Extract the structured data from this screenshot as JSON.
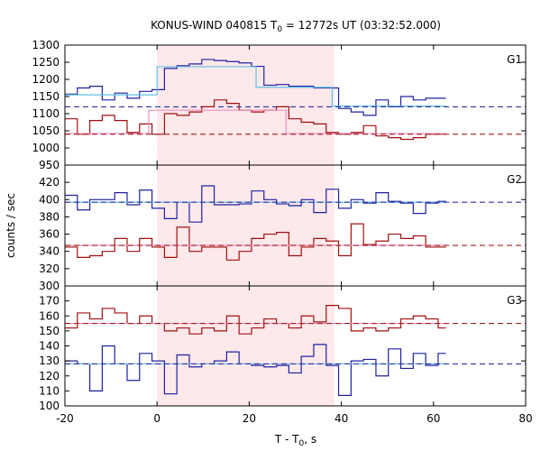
{
  "chart_data": {
    "type": "line",
    "title": "KONUS-WIND 040815 T",
    "title_sub": "0",
    "title_rest": " = 12772s UT (03:32:52.000)",
    "xlabel": "T - T",
    "xlabel_sub": "0",
    "xlabel_rest": ", s",
    "ylabel": "counts / sec",
    "xlim": [
      -20,
      80
    ],
    "x_ticks": [
      -20,
      0,
      20,
      40,
      60,
      80
    ],
    "shaded_region": [
      0,
      38.5
    ],
    "colors": {
      "blue_step": "#2020a0",
      "red_step": "#a01010",
      "blue_fit": "#60c0e8",
      "red_fit": "#f090c0",
      "blue_bg": "#3030a0",
      "red_bg": "#a02020",
      "shade": "#fde8ea"
    },
    "panels": [
      {
        "name": "G1",
        "ylim": [
          950,
          1300
        ],
        "y_ticks": [
          950,
          1000,
          1050,
          1100,
          1150,
          1200,
          1250,
          1300
        ],
        "series": [
          {
            "color": "blue",
            "edges": [
              -20,
              -17.3,
              -14.6,
              -11.9,
              -9.2,
              -6.5,
              -3.8,
              -1.1,
              1.6,
              4.3,
              7,
              9.7,
              12.4,
              15.1,
              17.8,
              20.5,
              23.2,
              25.9,
              28.6,
              31.3,
              34,
              36.7,
              39.4,
              42.1,
              44.8,
              47.5,
              50.2,
              52.9,
              55.6,
              58.3,
              61,
              62.7
            ],
            "values": [
              1157,
              1175,
              1180,
              1140,
              1160,
              1145,
              1165,
              1170,
              1232,
              1240,
              1245,
              1258,
              1255,
              1252,
              1248,
              1238,
              1183,
              1185,
              1180,
              1180,
              1175,
              1175,
              1115,
              1105,
              1095,
              1140,
              1120,
              1150,
              1140,
              1145,
              1145
            ],
            "fit": [
              [
                -20,
                1155
              ],
              [
                0,
                1155
              ],
              [
                0,
                1237
              ],
              [
                21.5,
                1237
              ],
              [
                21.5,
                1177
              ],
              [
                38,
                1177
              ],
              [
                38,
                1122
              ],
              [
                62.7,
                1122
              ]
            ],
            "background": 1120
          },
          {
            "color": "red",
            "edges": [
              -20,
              -17.3,
              -14.6,
              -11.9,
              -9.2,
              -6.5,
              -3.8,
              -1.1,
              1.6,
              4.3,
              7,
              9.7,
              12.4,
              15.1,
              17.8,
              20.5,
              23.2,
              25.9,
              28.6,
              31.3,
              34,
              36.7,
              39.4,
              42.1,
              44.8,
              47.5,
              50.2,
              52.9,
              55.6,
              58.3,
              61,
              62.7
            ],
            "values": [
              1085,
              1040,
              1080,
              1095,
              1080,
              1045,
              1070,
              1040,
              1100,
              1095,
              1105,
              1120,
              1140,
              1130,
              1110,
              1105,
              1110,
              1120,
              1085,
              1075,
              1070,
              1045,
              1040,
              1045,
              1065,
              1035,
              1030,
              1025,
              1030,
              1040,
              1040
            ],
            "fit": [
              [
                -20,
                1042
              ],
              [
                -1.8,
                1042
              ],
              [
                -1.8,
                1110
              ],
              [
                28,
                1110
              ],
              [
                28,
                1042
              ],
              [
                62.7,
                1042
              ]
            ],
            "background": 1040
          }
        ]
      },
      {
        "name": "G2",
        "ylim": [
          300,
          440
        ],
        "y_ticks": [
          300,
          320,
          340,
          360,
          380,
          400,
          420
        ],
        "series": [
          {
            "color": "blue",
            "edges": [
              -20,
              -17.3,
              -14.6,
              -11.9,
              -9.2,
              -6.5,
              -3.8,
              -1.1,
              1.6,
              4.3,
              7,
              9.7,
              12.4,
              15.1,
              17.8,
              20.5,
              23.2,
              25.9,
              28.6,
              31.3,
              34,
              36.7,
              39.4,
              42.1,
              44.8,
              47.5,
              50.2,
              52.9,
              55.6,
              58.3,
              61,
              62.7
            ],
            "values": [
              405,
              388,
              400,
              400,
              408,
              394,
              411,
              390,
              378,
              397,
              374,
              416,
              394,
              394,
              395,
              410,
              400,
              395,
              393,
              400,
              385,
              412,
              390,
              400,
              396,
              408,
              398,
              396,
              384,
              396,
              398
            ],
            "fit": [
              [
                -20,
                397
              ],
              [
                62.7,
                397
              ]
            ],
            "background": 397
          },
          {
            "color": "red",
            "edges": [
              -20,
              -17.3,
              -14.6,
              -11.9,
              -9.2,
              -6.5,
              -3.8,
              -1.1,
              1.6,
              4.3,
              7,
              9.7,
              12.4,
              15.1,
              17.8,
              20.5,
              23.2,
              25.9,
              28.6,
              31.3,
              34,
              36.7,
              39.4,
              42.1,
              44.8,
              47.5,
              50.2,
              52.9,
              55.6,
              58.3,
              61,
              62.7
            ],
            "values": [
              345,
              333,
              335,
              340,
              355,
              340,
              355,
              345,
              333,
              368,
              340,
              345,
              345,
              330,
              340,
              355,
              360,
              362,
              335,
              345,
              355,
              352,
              335,
              372,
              348,
              352,
              360,
              355,
              358,
              345,
              345
            ],
            "fit": [
              [
                -20,
                347
              ],
              [
                62.7,
                347
              ]
            ],
            "background": 347
          }
        ]
      },
      {
        "name": "G3",
        "ylim": [
          100,
          180
        ],
        "y_ticks": [
          100,
          110,
          120,
          130,
          140,
          150,
          160,
          170
        ],
        "series": [
          {
            "color": "red",
            "edges": [
              -20,
              -17.3,
              -14.6,
              -11.9,
              -9.2,
              -6.5,
              -3.8,
              -1.1,
              1.6,
              4.3,
              7,
              9.7,
              12.4,
              15.1,
              17.8,
              20.5,
              23.2,
              25.9,
              28.6,
              31.3,
              34,
              36.7,
              39.4,
              42.1,
              44.8,
              47.5,
              50.2,
              52.9,
              55.6,
              58.3,
              61,
              62.7
            ],
            "values": [
              152,
              162,
              158,
              165,
              162,
              155,
              160,
              155,
              150,
              152,
              148,
              152,
              150,
              160,
              148,
              152,
              158,
              155,
              152,
              160,
              156,
              167,
              165,
              150,
              152,
              150,
              152,
              158,
              160,
              158,
              152
            ],
            "fit": [
              [
                -20,
                155
              ],
              [
                62.7,
                155
              ]
            ],
            "background": 155
          },
          {
            "color": "blue",
            "edges": [
              -20,
              -17.3,
              -14.6,
              -11.9,
              -9.2,
              -6.5,
              -3.8,
              -1.1,
              1.6,
              4.3,
              7,
              9.7,
              12.4,
              15.1,
              17.8,
              20.5,
              23.2,
              25.9,
              28.6,
              31.3,
              34,
              36.7,
              39.4,
              42.1,
              44.8,
              47.5,
              50.2,
              52.9,
              55.6,
              58.3,
              61,
              62.7
            ],
            "values": [
              130,
              128,
              110,
              140,
              128,
              117,
              135,
              130,
              108,
              134,
              126,
              128,
              130,
              136,
              128,
              127,
              126,
              127,
              122,
              133,
              141,
              127,
              107,
              130,
              131,
              120,
              138,
              125,
              135,
              127,
              135
            ],
            "fit": [
              [
                -20,
                128
              ],
              [
                62.7,
                128
              ]
            ],
            "background": 128
          }
        ]
      }
    ]
  }
}
